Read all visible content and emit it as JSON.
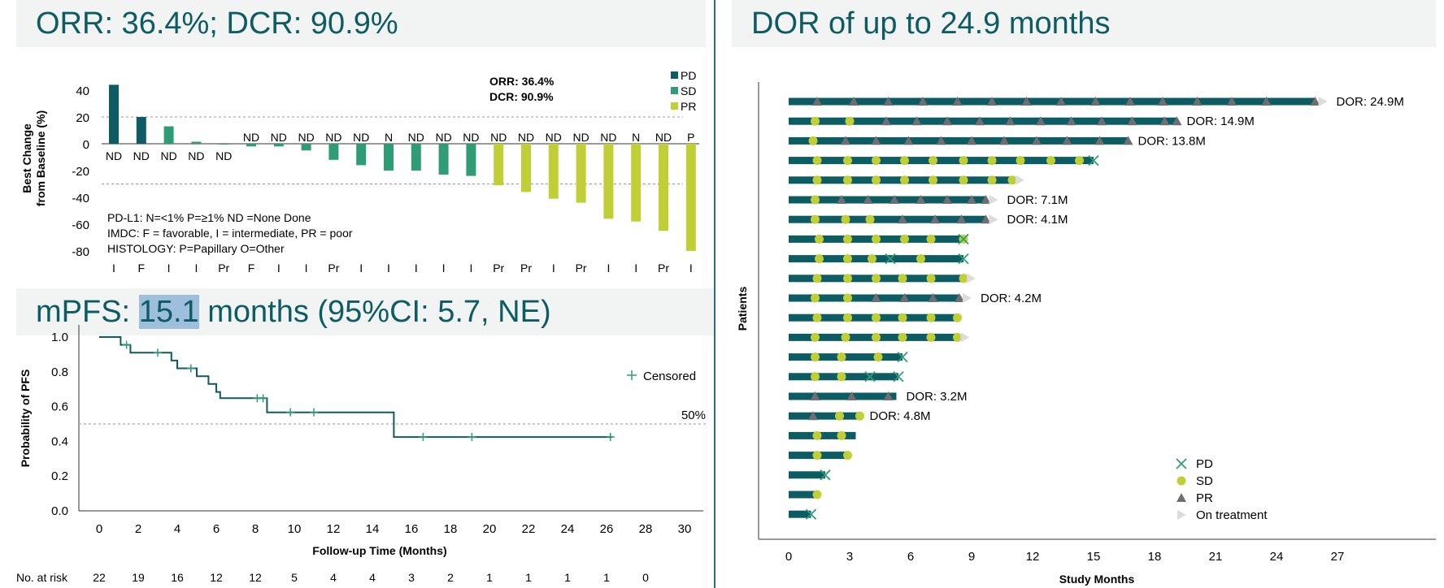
{
  "headers": {
    "orr_title": "ORR: 36.4%; DCR: 90.9%",
    "pfs_prefix": "mPFS: ",
    "pfs_value": "15.1",
    "pfs_suffix": " months (95%CI: 5.7, NE)",
    "dor_title": "DOR of up to 24.9 months"
  },
  "chart_data": [
    {
      "type": "bar",
      "title": "",
      "ylabel": "Best Change from Baseline (%)",
      "ylabel_lines": [
        "Best Change",
        "from Baseline (%)"
      ],
      "ylim": [
        -80,
        45
      ],
      "yticks": [
        40,
        20,
        0,
        -20,
        -40,
        -60,
        -80
      ],
      "reference_lines": [
        20,
        -30
      ],
      "values": [
        44,
        20,
        13,
        1.5,
        0,
        -2,
        -2,
        -5,
        -12,
        -16,
        -20,
        -20,
        -23,
        -24,
        -31,
        -36,
        -41,
        -44,
        -56,
        -58,
        -65,
        -80
      ],
      "response": [
        "PD",
        "PD",
        "SD",
        "SD",
        "SD",
        "SD",
        "SD",
        "SD",
        "SD",
        "SD",
        "SD",
        "SD",
        "SD",
        "SD",
        "PR",
        "PR",
        "PR",
        "PR",
        "PR",
        "PR",
        "PR",
        "PR"
      ],
      "pdl1_labels": [
        "ND",
        "ND",
        "ND",
        "ND",
        "ND",
        "ND",
        "ND",
        "ND",
        "ND",
        "ND",
        "N",
        "ND",
        "ND",
        "ND",
        "ND",
        "ND",
        "ND",
        "ND",
        "ND",
        "N",
        "ND",
        "P"
      ],
      "imdc_labels": [
        "I",
        "F",
        "I",
        "I",
        "Pr",
        "F",
        "I",
        "I",
        "Pr",
        "I",
        "I",
        "I",
        "I",
        "I",
        "Pr",
        "Pr",
        "I",
        "Pr",
        "I",
        "I",
        "Pr",
        "I"
      ],
      "summary": [
        "ORR: 36.4%",
        "DCR: 90.9%"
      ],
      "legend": [
        {
          "name": "PD",
          "color": "#0d5c63"
        },
        {
          "name": "SD",
          "color": "#2e9c74"
        },
        {
          "name": "PR",
          "color": "#bfcf35"
        }
      ],
      "footnotes": [
        "PD-L1: N=<1% P=≥1% ND =None Done",
        "IMDC: F = favorable, I = intermediate, PR = poor",
        "HISTOLOGY: P=Papillary O=Other"
      ]
    },
    {
      "type": "line",
      "title": "",
      "xlabel": "Follow-up Time (Months)",
      "ylabel": "Probability of PFS",
      "xlim": [
        0,
        30
      ],
      "ylim": [
        0,
        1.0
      ],
      "xticks": [
        0,
        2,
        4,
        6,
        8,
        10,
        12,
        14,
        16,
        18,
        20,
        22,
        24,
        26,
        28,
        30
      ],
      "yticks": [
        "1.0",
        "0.8",
        "0.6",
        "0.4",
        "0.2",
        "0.0"
      ],
      "ytick_values": [
        1.0,
        0.8,
        0.6,
        0.4,
        0.2,
        0.0
      ],
      "median_line": 0.5,
      "median_label": "50%",
      "curve": [
        [
          0,
          1.0
        ],
        [
          1.1,
          1.0
        ],
        [
          1.1,
          0.955
        ],
        [
          1.6,
          0.955
        ],
        [
          1.6,
          0.91
        ],
        [
          3.7,
          0.91
        ],
        [
          3.7,
          0.865
        ],
        [
          4.0,
          0.865
        ],
        [
          4.0,
          0.82
        ],
        [
          5.0,
          0.82
        ],
        [
          5.0,
          0.775
        ],
        [
          5.6,
          0.775
        ],
        [
          5.6,
          0.73
        ],
        [
          6.0,
          0.73
        ],
        [
          6.0,
          0.684
        ],
        [
          6.2,
          0.684
        ],
        [
          6.2,
          0.648
        ],
        [
          8.6,
          0.648
        ],
        [
          8.6,
          0.567
        ],
        [
          15.1,
          0.567
        ],
        [
          15.1,
          0.425
        ],
        [
          26.3,
          0.425
        ]
      ],
      "censored": [
        [
          1.4,
          0.955
        ],
        [
          3.0,
          0.91
        ],
        [
          4.7,
          0.82
        ],
        [
          8.1,
          0.648
        ],
        [
          8.4,
          0.648
        ],
        [
          9.8,
          0.567
        ],
        [
          11.0,
          0.567
        ],
        [
          16.6,
          0.425
        ],
        [
          19.1,
          0.425
        ],
        [
          26.2,
          0.425
        ]
      ],
      "legend": "Censored",
      "risk_label": "No. at risk",
      "at_risk": [
        "22",
        "19",
        "16",
        "12",
        "12",
        "5",
        "4",
        "4",
        "3",
        "2",
        "1",
        "1",
        "1",
        "1",
        "0"
      ],
      "color": "#0d5c63"
    },
    {
      "type": "bar",
      "title": "",
      "xlabel": "Study Months",
      "ylabel": "Patients",
      "xlim": [
        0,
        27
      ],
      "xticks": [
        0,
        3,
        6,
        9,
        12,
        15,
        18,
        21,
        24,
        27
      ],
      "legend": [
        {
          "name": "PD",
          "symbol": "x",
          "color": "#2e9c74"
        },
        {
          "name": "SD",
          "symbol": "circle",
          "color": "#bfcf35"
        },
        {
          "name": "PR",
          "symbol": "triangle",
          "color": "#6d6e71"
        },
        {
          "name": "On treatment",
          "symbol": "arrow",
          "color": "#dcdcdc"
        }
      ],
      "patients": [
        {
          "len": 25.9,
          "ongoing": true,
          "events": [
            [
              "PR",
              1.4
            ],
            [
              "PR",
              3.2
            ],
            [
              "PR",
              4.9
            ],
            [
              "PR",
              6.6
            ],
            [
              "PR",
              8.3
            ],
            [
              "PR",
              10.0
            ],
            [
              "PR",
              11.7
            ],
            [
              "PR",
              13.4
            ],
            [
              "PR",
              15.1
            ],
            [
              "PR",
              16.8
            ],
            [
              "PR",
              18.4
            ],
            [
              "PR",
              20.1
            ],
            [
              "PR",
              21.8
            ],
            [
              "PR",
              23.5
            ],
            [
              "PR",
              25.9
            ]
          ],
          "dor": "DOR: 24.9M"
        },
        {
          "len": 19.1,
          "ongoing": false,
          "events": [
            [
              "SD",
              1.3
            ],
            [
              "SD",
              3.0
            ],
            [
              "PR",
              4.8
            ],
            [
              "PR",
              6.3
            ],
            [
              "PR",
              7.8
            ],
            [
              "PR",
              9.4
            ],
            [
              "PR",
              10.9
            ],
            [
              "PR",
              12.4
            ],
            [
              "PR",
              13.9
            ],
            [
              "PR",
              15.4
            ],
            [
              "PR",
              16.9
            ],
            [
              "PR",
              18.5
            ],
            [
              "PR",
              19.1
            ]
          ],
          "dor": "DOR: 14.9M"
        },
        {
          "len": 16.7,
          "ongoing": false,
          "events": [
            [
              "SD",
              1.2
            ],
            [
              "PR",
              2.8
            ],
            [
              "PR",
              4.3
            ],
            [
              "PR",
              5.9
            ],
            [
              "PR",
              7.5
            ],
            [
              "PR",
              9.0
            ],
            [
              "PR",
              10.6
            ],
            [
              "PR",
              12.2
            ],
            [
              "PR",
              13.7
            ],
            [
              "PR",
              15.3
            ],
            [
              "PR",
              16.7
            ]
          ],
          "dor": "DOR: 13.8M"
        },
        {
          "len": 15.0,
          "ongoing": false,
          "events": [
            [
              "SD",
              1.4
            ],
            [
              "SD",
              2.9
            ],
            [
              "SD",
              4.3
            ],
            [
              "SD",
              5.7
            ],
            [
              "SD",
              7.1
            ],
            [
              "SD",
              8.6
            ],
            [
              "SD",
              10.0
            ],
            [
              "SD",
              11.4
            ],
            [
              "SD",
              12.9
            ],
            [
              "SD",
              14.3
            ],
            [
              "PD",
              15.0
            ]
          ],
          "dor": ""
        },
        {
          "len": 11.0,
          "ongoing": true,
          "events": [
            [
              "SD",
              1.4
            ],
            [
              "SD",
              2.9
            ],
            [
              "SD",
              4.3
            ],
            [
              "SD",
              5.7
            ],
            [
              "SD",
              7.1
            ],
            [
              "SD",
              8.6
            ],
            [
              "SD",
              10.0
            ],
            [
              "SD",
              11.0
            ]
          ],
          "dor": ""
        },
        {
          "len": 9.7,
          "ongoing": true,
          "events": [
            [
              "SD",
              1.3
            ],
            [
              "PR",
              2.6
            ],
            [
              "PR",
              3.9
            ],
            [
              "PR",
              5.2
            ],
            [
              "PR",
              6.5
            ],
            [
              "PR",
              7.8
            ],
            [
              "PR",
              9.0
            ],
            [
              "PR",
              9.7
            ]
          ],
          "dor": "DOR: 7.1M"
        },
        {
          "len": 9.7,
          "ongoing": true,
          "events": [
            [
              "SD",
              1.3
            ],
            [
              "SD",
              2.8
            ],
            [
              "SD",
              4.0
            ],
            [
              "PR",
              5.6
            ],
            [
              "PR",
              7.2
            ],
            [
              "PR",
              8.5
            ],
            [
              "PR",
              9.7
            ]
          ],
          "dor": "DOR: 4.1M"
        },
        {
          "len": 8.6,
          "ongoing": false,
          "events": [
            [
              "SD",
              1.5
            ],
            [
              "SD",
              2.9
            ],
            [
              "SD",
              4.3
            ],
            [
              "SD",
              5.7
            ],
            [
              "SD",
              7.0
            ],
            [
              "SD",
              8.6
            ],
            [
              "PD",
              8.6
            ]
          ],
          "dor": ""
        },
        {
          "len": 8.6,
          "ongoing": false,
          "events": [
            [
              "SD",
              1.5
            ],
            [
              "SD",
              2.9
            ],
            [
              "SD",
              4.1
            ],
            [
              "PD",
              5.0
            ],
            [
              "SD",
              6.5
            ],
            [
              "PD",
              8.6
            ]
          ],
          "dor": ""
        },
        {
          "len": 8.6,
          "ongoing": true,
          "events": [
            [
              "SD",
              1.4
            ],
            [
              "SD",
              2.9
            ],
            [
              "SD",
              4.3
            ],
            [
              "SD",
              5.6
            ],
            [
              "SD",
              7.0
            ],
            [
              "SD",
              8.6
            ]
          ],
          "dor": ""
        },
        {
          "len": 8.4,
          "ongoing": true,
          "events": [
            [
              "SD",
              1.3
            ],
            [
              "SD",
              2.9
            ],
            [
              "PR",
              4.3
            ],
            [
              "PR",
              5.7
            ],
            [
              "PR",
              7.1
            ],
            [
              "PR",
              8.4
            ]
          ],
          "dor": "DOR: 4.2M"
        },
        {
          "len": 8.3,
          "ongoing": false,
          "events": [
            [
              "SD",
              1.4
            ],
            [
              "SD",
              2.9
            ],
            [
              "SD",
              4.3
            ],
            [
              "SD",
              5.6
            ],
            [
              "SD",
              7.0
            ],
            [
              "SD",
              8.3
            ]
          ],
          "dor": ""
        },
        {
          "len": 8.3,
          "ongoing": true,
          "events": [
            [
              "SD",
              1.3
            ],
            [
              "SD",
              2.8
            ],
            [
              "SD",
              4.3
            ],
            [
              "SD",
              5.6
            ],
            [
              "SD",
              7.0
            ],
            [
              "SD",
              8.3
            ]
          ],
          "dor": ""
        },
        {
          "len": 5.6,
          "ongoing": false,
          "events": [
            [
              "SD",
              1.3
            ],
            [
              "SD",
              2.6
            ],
            [
              "SD",
              4.4
            ],
            [
              "PD",
              5.6
            ]
          ],
          "dor": ""
        },
        {
          "len": 5.4,
          "ongoing": false,
          "events": [
            [
              "SD",
              1.3
            ],
            [
              "SD",
              2.6
            ],
            [
              "PD",
              4.0
            ],
            [
              "PD",
              5.4
            ]
          ],
          "dor": ""
        },
        {
          "len": 5.3,
          "ongoing": false,
          "events": [
            [
              "PR",
              1.3
            ],
            [
              "PR",
              3.1
            ],
            [
              "PR",
              4.9
            ]
          ],
          "dor": "DOR: 3.2M"
        },
        {
          "len": 3.5,
          "ongoing": false,
          "events": [
            [
              "PR",
              1.2
            ],
            [
              "SD",
              2.5
            ],
            [
              "SD",
              3.5
            ]
          ],
          "dor": "DOR: 4.8M"
        },
        {
          "len": 3.3,
          "ongoing": false,
          "events": [
            [
              "SD",
              1.4
            ],
            [
              "SD",
              2.6
            ]
          ],
          "dor": ""
        },
        {
          "len": 2.9,
          "ongoing": false,
          "events": [
            [
              "SD",
              1.4
            ],
            [
              "SD",
              2.9
            ]
          ],
          "dor": ""
        },
        {
          "len": 1.8,
          "ongoing": false,
          "events": [
            [
              "PD",
              1.8
            ]
          ],
          "dor": ""
        },
        {
          "len": 1.4,
          "ongoing": false,
          "events": [
            [
              "SD",
              1.4
            ]
          ],
          "dor": ""
        },
        {
          "len": 1.1,
          "ongoing": false,
          "events": [
            [
              "PD",
              1.1
            ]
          ],
          "dor": ""
        }
      ]
    }
  ]
}
